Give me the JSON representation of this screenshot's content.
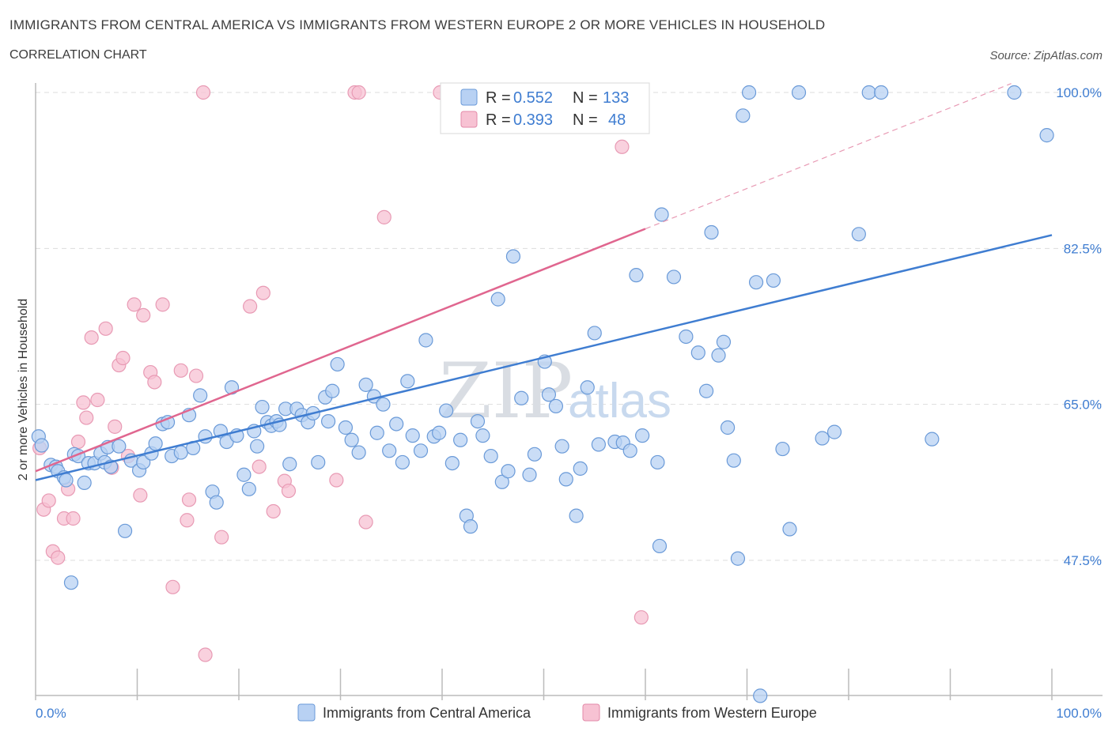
{
  "title": "IMMIGRANTS FROM CENTRAL AMERICA VS IMMIGRANTS FROM WESTERN EUROPE 2 OR MORE VEHICLES IN HOUSEHOLD",
  "subtitle": "CORRELATION CHART",
  "source": "Source: ZipAtlas.com",
  "watermark": {
    "zip": "ZIP",
    "atlas": "atlas"
  },
  "legend_top": {
    "rows": [
      {
        "r_label": "R =",
        "r_value": "0.552",
        "n_label": "N =",
        "n_value": "133"
      },
      {
        "r_label": "R =",
        "r_value": "0.393",
        "n_label": "N =",
        "n_value": "48"
      }
    ]
  },
  "legend_bottom": {
    "items": [
      {
        "label": "Immigrants from Central America"
      },
      {
        "label": "Immigrants from Western Europe"
      }
    ]
  },
  "colors": {
    "blue": "#3f7dd1",
    "blue_fill": "#b8d1f3",
    "pink": "#e0668f",
    "pink_fill": "#f7c2d3",
    "grid": "#dddddd"
  },
  "chart_data": {
    "type": "scatter",
    "title": "IMMIGRANTS FROM CENTRAL AMERICA VS IMMIGRANTS FROM WESTERN EUROPE 2 OR MORE VEHICLES IN HOUSEHOLD",
    "xlabel": "",
    "ylabel": "2 or more Vehicles in Household",
    "xlim": [
      0,
      100
    ],
    "ylim": [
      30,
      101
    ],
    "x_tick_labels": [
      "0.0%",
      "100.0%"
    ],
    "y_ticks": [
      47.5,
      65.0,
      82.5,
      100.0
    ],
    "y_tick_labels": [
      "47.5%",
      "65.0%",
      "82.5%",
      "100.0%"
    ],
    "grid": true,
    "legend_position": "top-center",
    "series": [
      {
        "name": "Immigrants from Central America",
        "color": "#3f7dd1",
        "trend": {
          "x0": 0,
          "y0": 56.5,
          "x1": 100,
          "y1": 84.0
        },
        "points": [
          [
            0.3,
            61.4
          ],
          [
            0.6,
            60.4
          ],
          [
            1.5,
            58.2
          ],
          [
            2.0,
            58.0
          ],
          [
            2.2,
            57.5
          ],
          [
            2.8,
            56.8
          ],
          [
            3.0,
            56.5
          ],
          [
            3.5,
            45.0
          ],
          [
            3.8,
            59.4
          ],
          [
            4.2,
            59.2
          ],
          [
            4.8,
            56.2
          ],
          [
            5.2,
            58.4
          ],
          [
            5.8,
            58.4
          ],
          [
            6.4,
            59.5
          ],
          [
            6.8,
            58.5
          ],
          [
            7.1,
            60.2
          ],
          [
            7.4,
            58.0
          ],
          [
            8.2,
            60.3
          ],
          [
            8.8,
            50.8
          ],
          [
            9.4,
            58.7
          ],
          [
            10.2,
            57.6
          ],
          [
            10.6,
            58.5
          ],
          [
            11.4,
            59.5
          ],
          [
            11.8,
            60.6
          ],
          [
            12.5,
            62.8
          ],
          [
            13.0,
            63.0
          ],
          [
            13.4,
            59.2
          ],
          [
            14.3,
            59.6
          ],
          [
            15.1,
            63.8
          ],
          [
            15.5,
            60.1
          ],
          [
            16.2,
            66.0
          ],
          [
            16.7,
            61.4
          ],
          [
            17.4,
            55.2
          ],
          [
            17.8,
            54.0
          ],
          [
            18.2,
            62.0
          ],
          [
            18.8,
            60.8
          ],
          [
            19.3,
            66.9
          ],
          [
            19.8,
            61.5
          ],
          [
            20.5,
            57.1
          ],
          [
            21.0,
            55.5
          ],
          [
            21.5,
            62.0
          ],
          [
            21.8,
            60.3
          ],
          [
            22.3,
            64.7
          ],
          [
            22.8,
            63.0
          ],
          [
            23.2,
            62.6
          ],
          [
            23.7,
            63.1
          ],
          [
            24.0,
            62.7
          ],
          [
            24.6,
            64.5
          ],
          [
            25.0,
            58.3
          ],
          [
            25.7,
            64.5
          ],
          [
            26.2,
            63.8
          ],
          [
            26.8,
            63.0
          ],
          [
            27.3,
            64.0
          ],
          [
            27.8,
            58.5
          ],
          [
            28.5,
            65.8
          ],
          [
            28.8,
            63.1
          ],
          [
            29.2,
            66.5
          ],
          [
            29.7,
            69.5
          ],
          [
            30.5,
            62.4
          ],
          [
            31.1,
            61.0
          ],
          [
            31.8,
            59.6
          ],
          [
            32.5,
            67.2
          ],
          [
            33.3,
            65.9
          ],
          [
            33.6,
            61.8
          ],
          [
            34.2,
            65.0
          ],
          [
            34.8,
            59.8
          ],
          [
            35.5,
            62.8
          ],
          [
            36.1,
            58.5
          ],
          [
            36.6,
            67.6
          ],
          [
            37.1,
            61.5
          ],
          [
            37.9,
            59.8
          ],
          [
            38.4,
            72.2
          ],
          [
            39.2,
            61.4
          ],
          [
            39.7,
            61.8
          ],
          [
            40.4,
            64.3
          ],
          [
            41.0,
            58.4
          ],
          [
            41.8,
            61.0
          ],
          [
            42.4,
            52.5
          ],
          [
            42.8,
            51.3
          ],
          [
            43.5,
            63.1
          ],
          [
            44.0,
            61.5
          ],
          [
            44.8,
            59.2
          ],
          [
            45.5,
            76.8
          ],
          [
            45.9,
            56.3
          ],
          [
            46.5,
            57.5
          ],
          [
            47.0,
            81.6
          ],
          [
            47.8,
            65.7
          ],
          [
            48.6,
            57.1
          ],
          [
            49.1,
            59.4
          ],
          [
            50.1,
            69.8
          ],
          [
            50.5,
            66.1
          ],
          [
            51.2,
            64.8
          ],
          [
            51.8,
            60.3
          ],
          [
            52.2,
            56.6
          ],
          [
            53.2,
            52.5
          ],
          [
            53.6,
            57.8
          ],
          [
            54.3,
            66.9
          ],
          [
            55.0,
            73.0
          ],
          [
            55.4,
            60.5
          ],
          [
            57.0,
            60.8
          ],
          [
            57.8,
            60.7
          ],
          [
            58.5,
            59.8
          ],
          [
            59.1,
            79.5
          ],
          [
            59.7,
            61.5
          ],
          [
            61.2,
            58.5
          ],
          [
            61.4,
            49.1
          ],
          [
            61.6,
            86.3
          ],
          [
            62.8,
            79.3
          ],
          [
            64.0,
            72.6
          ],
          [
            65.2,
            70.8
          ],
          [
            66.0,
            66.5
          ],
          [
            66.5,
            84.3
          ],
          [
            67.2,
            70.5
          ],
          [
            67.7,
            72.0
          ],
          [
            68.1,
            62.4
          ],
          [
            68.7,
            58.7
          ],
          [
            69.1,
            47.7
          ],
          [
            69.6,
            97.4
          ],
          [
            70.2,
            100.0
          ],
          [
            70.9,
            78.7
          ],
          [
            71.3,
            32.3
          ],
          [
            72.6,
            78.9
          ],
          [
            73.5,
            60.0
          ],
          [
            74.2,
            51.0
          ],
          [
            75.1,
            100.0
          ],
          [
            77.4,
            61.2
          ],
          [
            78.6,
            61.9
          ],
          [
            81.0,
            84.1
          ],
          [
            82.0,
            100.0
          ],
          [
            83.2,
            100.0
          ],
          [
            88.2,
            61.1
          ],
          [
            96.3,
            100.0
          ],
          [
            99.5,
            95.2
          ]
        ]
      },
      {
        "name": "Immigrants from Western Europe",
        "color": "#e0668f",
        "trend": {
          "x0": 0,
          "y0": 57.5,
          "x1": 60,
          "y1": 84.7
        },
        "trend_dashed": {
          "x0": 60,
          "y0": 84.7,
          "x1": 96,
          "y1": 101
        },
        "points": [
          [
            0.4,
            60.1
          ],
          [
            0.8,
            53.2
          ],
          [
            1.3,
            54.2
          ],
          [
            1.7,
            48.5
          ],
          [
            2.2,
            47.8
          ],
          [
            2.8,
            52.2
          ],
          [
            3.2,
            55.5
          ],
          [
            3.7,
            52.2
          ],
          [
            4.2,
            60.8
          ],
          [
            4.7,
            65.2
          ],
          [
            5.0,
            63.5
          ],
          [
            5.5,
            72.5
          ],
          [
            6.1,
            65.5
          ],
          [
            6.9,
            73.5
          ],
          [
            7.5,
            57.9
          ],
          [
            7.8,
            62.5
          ],
          [
            8.2,
            69.4
          ],
          [
            8.6,
            70.2
          ],
          [
            9.1,
            59.2
          ],
          [
            9.7,
            76.2
          ],
          [
            10.3,
            54.8
          ],
          [
            10.6,
            75.0
          ],
          [
            11.3,
            68.6
          ],
          [
            11.7,
            67.5
          ],
          [
            12.5,
            76.2
          ],
          [
            13.5,
            44.5
          ],
          [
            14.3,
            68.8
          ],
          [
            14.9,
            52.0
          ],
          [
            15.1,
            54.3
          ],
          [
            15.8,
            68.2
          ],
          [
            16.5,
            100.0
          ],
          [
            16.7,
            36.9
          ],
          [
            18.3,
            50.1
          ],
          [
            21.1,
            76.0
          ],
          [
            22.0,
            58.0
          ],
          [
            22.4,
            77.5
          ],
          [
            23.4,
            53.0
          ],
          [
            24.5,
            56.4
          ],
          [
            24.9,
            55.3
          ],
          [
            29.6,
            56.5
          ],
          [
            31.4,
            100.0
          ],
          [
            31.8,
            100.0
          ],
          [
            32.5,
            51.8
          ],
          [
            34.3,
            86.0
          ],
          [
            39.8,
            100.0
          ],
          [
            47.8,
            100.0
          ],
          [
            57.7,
            93.9
          ],
          [
            59.6,
            41.1
          ]
        ]
      }
    ]
  }
}
